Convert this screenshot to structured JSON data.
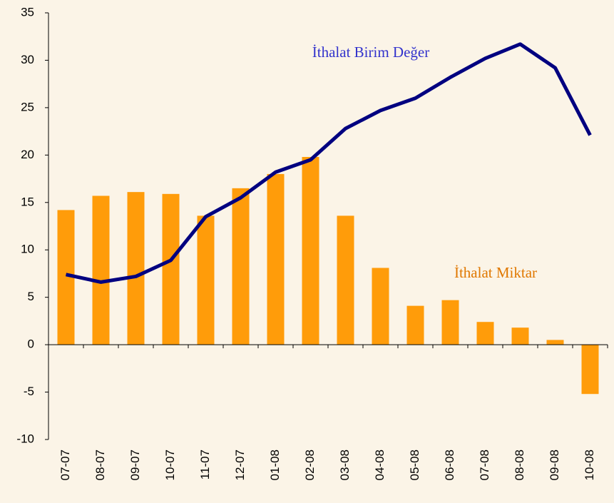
{
  "chart_data": {
    "type": "bar_line",
    "categories": [
      "07-07",
      "08-07",
      "09-07",
      "10-07",
      "11-07",
      "12-07",
      "01-08",
      "02-08",
      "03-08",
      "04-08",
      "05-08",
      "06-08",
      "07-08",
      "08-08",
      "09-08",
      "10-08"
    ],
    "series": [
      {
        "name": "İthalat Miktar",
        "type": "bar",
        "color": "#ff9c0a",
        "values": [
          14.2,
          15.7,
          16.1,
          15.9,
          13.6,
          16.5,
          18.0,
          19.8,
          13.6,
          8.1,
          4.1,
          4.7,
          2.4,
          1.8,
          0.5,
          -5.2
        ]
      },
      {
        "name": "İthalat Birim Değer",
        "type": "line",
        "color": "#000080",
        "values": [
          7.4,
          6.6,
          7.2,
          8.9,
          13.5,
          15.5,
          18.2,
          19.5,
          22.8,
          24.7,
          26.0,
          28.2,
          30.2,
          31.7,
          29.2,
          22.1
        ]
      }
    ],
    "ylim": [
      -10,
      35
    ],
    "yticks": [
      -10,
      -5,
      0,
      5,
      10,
      15,
      20,
      25,
      30,
      35
    ]
  }
}
